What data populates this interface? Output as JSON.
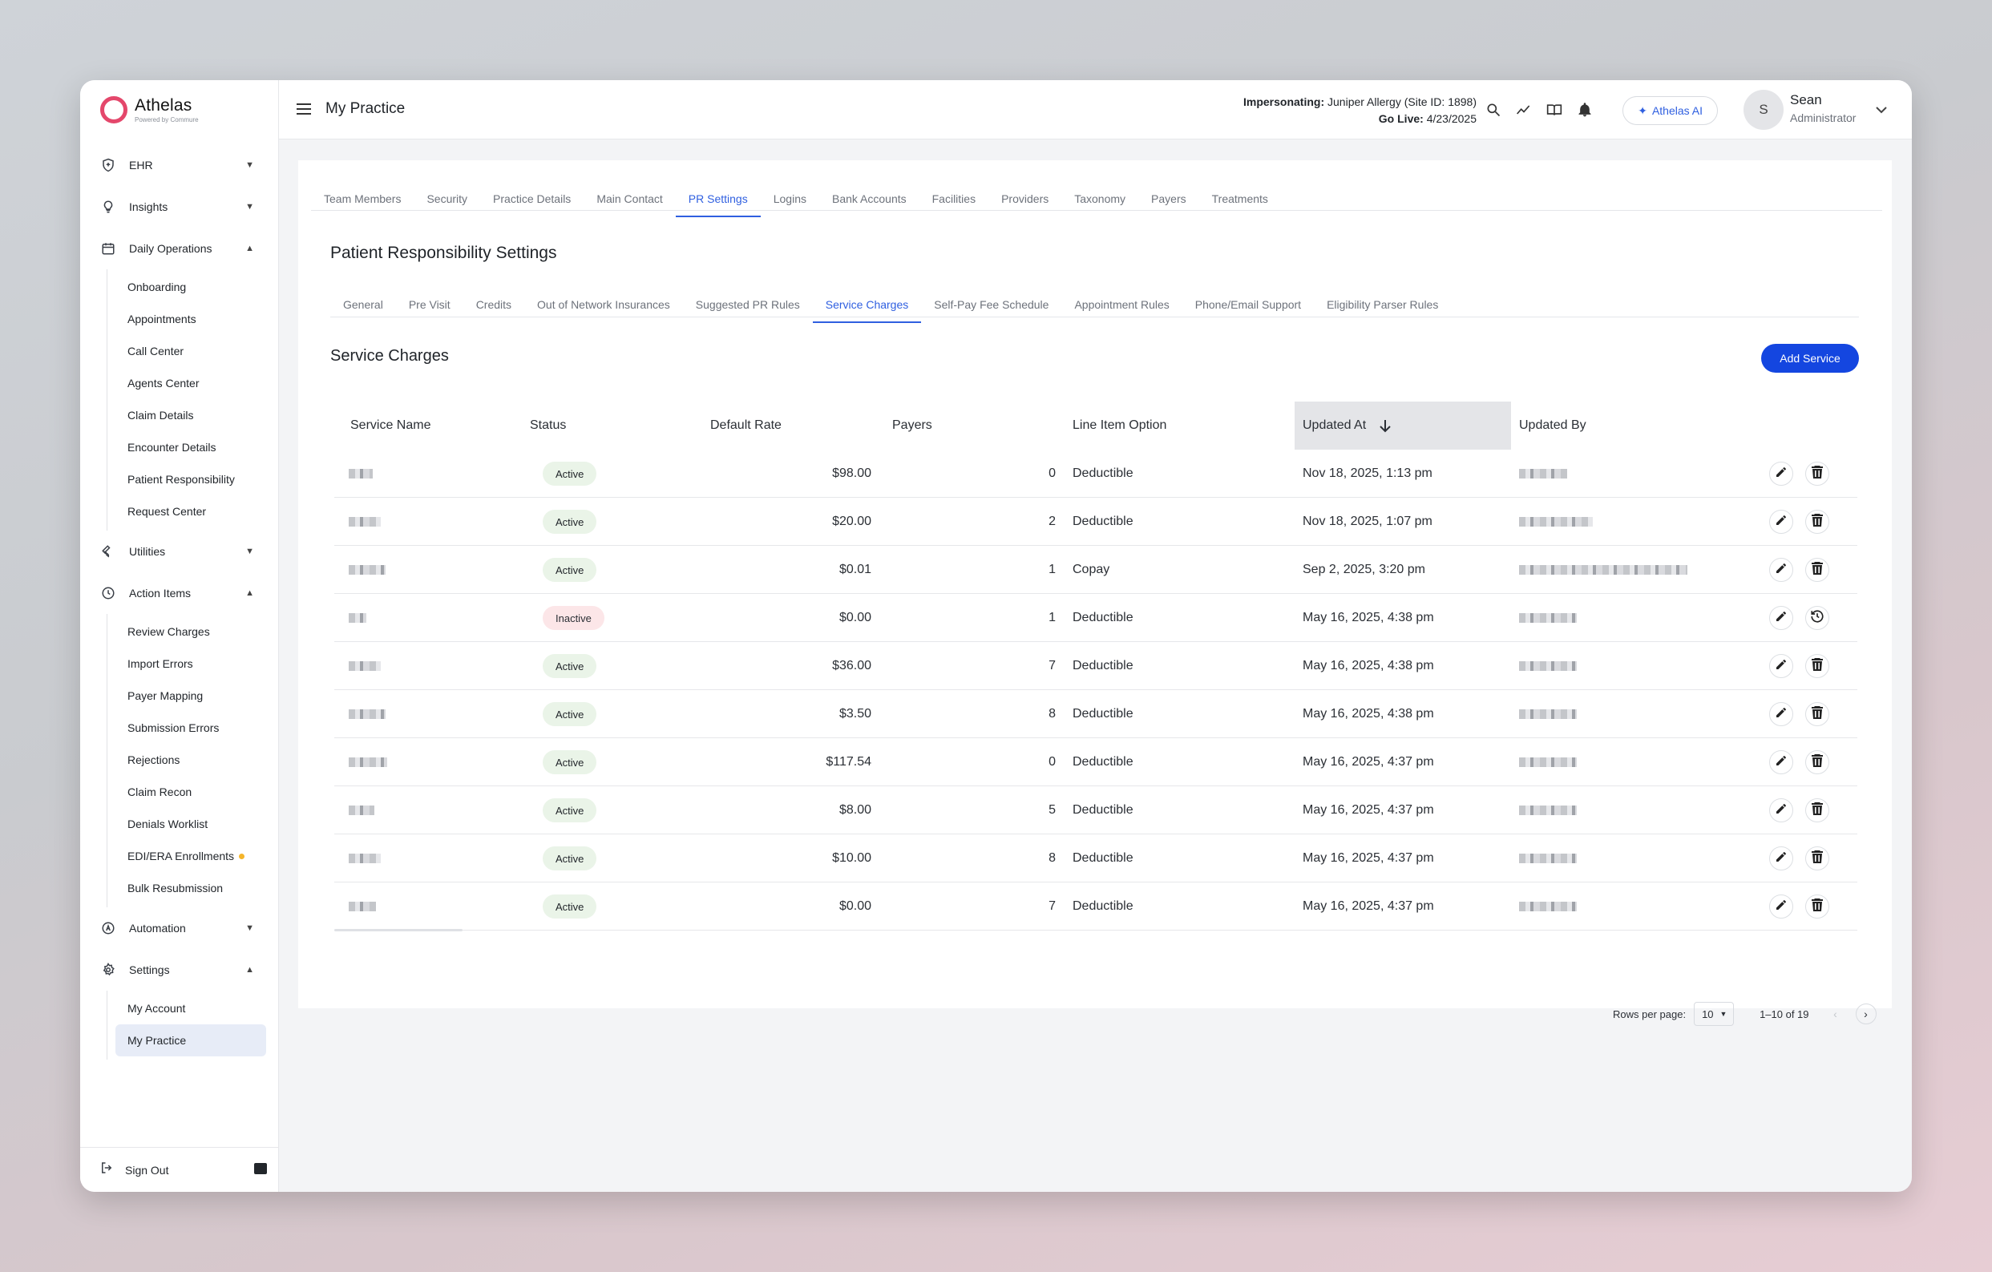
{
  "brand": {
    "name": "Athelas",
    "tagline": "Powered by Commure",
    "accent": "#e4476b"
  },
  "sidebar": {
    "groups": [
      {
        "label": "EHR",
        "icon": "shield-icon",
        "expanded": false
      },
      {
        "label": "Insights",
        "icon": "lightbulb-icon",
        "expanded": false
      },
      {
        "label": "Daily Operations",
        "icon": "calendar-icon",
        "expanded": true,
        "items": [
          "Onboarding",
          "Appointments",
          "Call Center",
          "Agents Center",
          "Claim Details",
          "Encounter Details",
          "Patient Responsibility",
          "Request Center"
        ]
      },
      {
        "label": "Utilities",
        "icon": "wrench-icon",
        "expanded": false
      },
      {
        "label": "Action Items",
        "icon": "clock-icon",
        "expanded": true,
        "items": [
          "Review Charges",
          "Import Errors",
          "Payer Mapping",
          "Submission Errors",
          "Rejections",
          "Claim Recon",
          "Denials Worklist",
          "EDI/ERA Enrollments",
          "Bulk Resubmission"
        ]
      },
      {
        "label": "Automation",
        "icon": "automation-icon",
        "expanded": false
      },
      {
        "label": "Settings",
        "icon": "gear-icon",
        "expanded": true,
        "items": [
          "My Account",
          "My Practice"
        ]
      }
    ],
    "active_item": "My Practice",
    "sign_out": "Sign Out"
  },
  "header": {
    "title": "My Practice",
    "impersonating_label": "Impersonating:",
    "impersonating_value": "Juniper Allergy (Site ID: 1898)",
    "go_live_label": "Go Live:",
    "go_live_value": "4/23/2025",
    "ai_button": "Athelas AI",
    "avatar_initial": "S",
    "user_name": "Sean",
    "user_role": "Administrator"
  },
  "top_tabs": [
    "Team Members",
    "Security",
    "Practice Details",
    "Main Contact",
    "PR Settings",
    "Logins",
    "Bank Accounts",
    "Facilities",
    "Providers",
    "Taxonomy",
    "Payers",
    "Treatments"
  ],
  "top_tab_active": "PR Settings",
  "page_title": "Patient Responsibility Settings",
  "sub_tabs": [
    "General",
    "Pre Visit",
    "Credits",
    "Out of Network Insurances",
    "Suggested PR Rules",
    "Service Charges",
    "Self-Pay Fee Schedule",
    "Appointment Rules",
    "Phone/Email Support",
    "Eligibility Parser Rules"
  ],
  "sub_tab_active": "Service Charges",
  "section_title": "Service Charges",
  "add_button": "Add Service",
  "table": {
    "columns": [
      "Service Name",
      "Status",
      "Default Rate",
      "Payers",
      "Line Item Option",
      "Updated At",
      "Updated By"
    ],
    "sort_column": "Updated At",
    "sort_direction": "desc",
    "rows": [
      {
        "status": "Active",
        "rate": "$98.00",
        "payers": "0",
        "option": "Deductible",
        "updated_at": "Nov 18, 2025, 1:13 pm",
        "action2": "delete"
      },
      {
        "status": "Active",
        "rate": "$20.00",
        "payers": "2",
        "option": "Deductible",
        "updated_at": "Nov 18, 2025, 1:07 pm",
        "action2": "delete"
      },
      {
        "status": "Active",
        "rate": "$0.01",
        "payers": "1",
        "option": "Copay",
        "updated_at": "Sep 2, 2025, 3:20 pm",
        "action2": "delete"
      },
      {
        "status": "Inactive",
        "rate": "$0.00",
        "payers": "1",
        "option": "Deductible",
        "updated_at": "May 16, 2025, 4:38 pm",
        "action2": "restore"
      },
      {
        "status": "Active",
        "rate": "$36.00",
        "payers": "7",
        "option": "Deductible",
        "updated_at": "May 16, 2025, 4:38 pm",
        "action2": "delete"
      },
      {
        "status": "Active",
        "rate": "$3.50",
        "payers": "8",
        "option": "Deductible",
        "updated_at": "May 16, 2025, 4:38 pm",
        "action2": "delete"
      },
      {
        "status": "Active",
        "rate": "$117.54",
        "payers": "0",
        "option": "Deductible",
        "updated_at": "May 16, 2025, 4:37 pm",
        "action2": "delete"
      },
      {
        "status": "Active",
        "rate": "$8.00",
        "payers": "5",
        "option": "Deductible",
        "updated_at": "May 16, 2025, 4:37 pm",
        "action2": "delete"
      },
      {
        "status": "Active",
        "rate": "$10.00",
        "payers": "8",
        "option": "Deductible",
        "updated_at": "May 16, 2025, 4:37 pm",
        "action2": "delete"
      },
      {
        "status": "Active",
        "rate": "$0.00",
        "payers": "7",
        "option": "Deductible",
        "updated_at": "May 16, 2025, 4:37 pm",
        "action2": "delete"
      }
    ]
  },
  "pagination": {
    "rows_per_page_label": "Rows per page:",
    "rows_per_page": "10",
    "range": "1–10 of 19"
  },
  "colors": {
    "primary": "#1446e0",
    "tab_active": "#2f5fe0",
    "active_badge": "#eaf4e8",
    "inactive_badge": "#fce6e8"
  }
}
